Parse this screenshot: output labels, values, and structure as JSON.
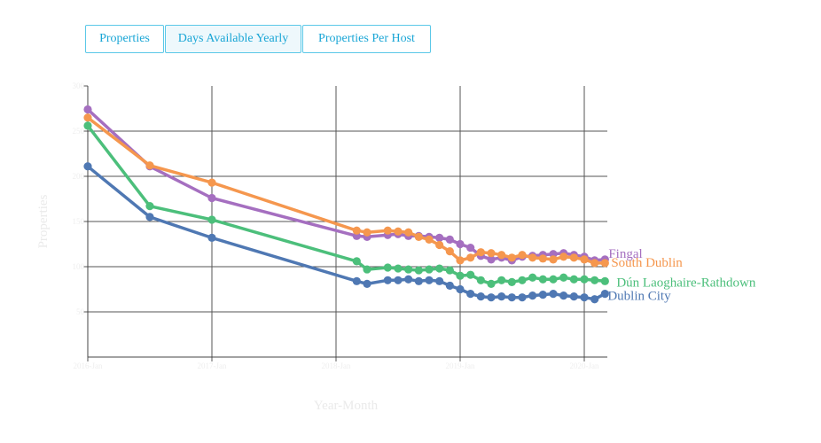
{
  "tabs": [
    {
      "label": "Properties"
    },
    {
      "label": "Days Available Yearly"
    },
    {
      "label": "Properties Per Host"
    }
  ],
  "active_tab": 1,
  "chart_data": {
    "type": "line",
    "title": "",
    "xlabel": "Year-Month",
    "ylabel": "Properties",
    "x_ticks": [
      "2016-Jan",
      "2017-Jan",
      "2018-Jan",
      "2019-Jan",
      "2020-Jan"
    ],
    "y_ticks": [
      "300",
      "250",
      "200",
      "150",
      "100",
      "50"
    ],
    "ylim": [
      0,
      300
    ],
    "xlim": [
      "2016-01",
      "2020-03"
    ],
    "grid": true,
    "series": [
      {
        "name": "Fingal",
        "color": "#a56fc0",
        "x": [
          "2016-01",
          "2016-07",
          "2017-01",
          "2018-03",
          "2018-04",
          "2018-06",
          "2018-07",
          "2018-08",
          "2018-09",
          "2018-10",
          "2018-11",
          "2018-12",
          "2019-01",
          "2019-02",
          "2019-03",
          "2019-04",
          "2019-05",
          "2019-06",
          "2019-07",
          "2019-08",
          "2019-09",
          "2019-10",
          "2019-11",
          "2019-12",
          "2020-01",
          "2020-02",
          "2020-03"
        ],
        "values": [
          274,
          211,
          176,
          134,
          133,
          135,
          136,
          134,
          134,
          133,
          132,
          130,
          125,
          121,
          112,
          108,
          110,
          107,
          111,
          112,
          113,
          114,
          115,
          113,
          111,
          107,
          108
        ]
      },
      {
        "name": "South Dublin",
        "color": "#f5974e",
        "x": [
          "2016-01",
          "2016-07",
          "2017-01",
          "2018-03",
          "2018-04",
          "2018-06",
          "2018-07",
          "2018-08",
          "2018-09",
          "2018-10",
          "2018-11",
          "2018-12",
          "2019-01",
          "2019-02",
          "2019-03",
          "2019-04",
          "2019-05",
          "2019-06",
          "2019-07",
          "2019-08",
          "2019-09",
          "2019-10",
          "2019-11",
          "2019-12",
          "2020-01",
          "2020-02",
          "2020-03"
        ],
        "values": [
          265,
          212,
          193,
          140,
          138,
          140,
          139,
          138,
          133,
          130,
          124,
          117,
          107,
          110,
          116,
          115,
          113,
          110,
          113,
          110,
          109,
          108,
          111,
          110,
          108,
          104,
          104
        ]
      },
      {
        "name": "Dún Laoghaire-Rathdown",
        "color": "#4cbf7b",
        "x": [
          "2016-01",
          "2016-07",
          "2017-01",
          "2018-03",
          "2018-04",
          "2018-06",
          "2018-07",
          "2018-08",
          "2018-09",
          "2018-10",
          "2018-11",
          "2018-12",
          "2019-01",
          "2019-02",
          "2019-03",
          "2019-04",
          "2019-05",
          "2019-06",
          "2019-07",
          "2019-08",
          "2019-09",
          "2019-10",
          "2019-11",
          "2019-12",
          "2020-01",
          "2020-02",
          "2020-03"
        ],
        "values": [
          256,
          167,
          152,
          106,
          97,
          99,
          98,
          97,
          96,
          97,
          98,
          96,
          90,
          91,
          85,
          81,
          85,
          83,
          85,
          88,
          86,
          86,
          88,
          86,
          86,
          85,
          84
        ]
      },
      {
        "name": "Dublin City",
        "color": "#4f78b3",
        "x": [
          "2016-01",
          "2016-07",
          "2017-01",
          "2018-03",
          "2018-04",
          "2018-06",
          "2018-07",
          "2018-08",
          "2018-09",
          "2018-10",
          "2018-11",
          "2018-12",
          "2019-01",
          "2019-02",
          "2019-03",
          "2019-04",
          "2019-05",
          "2019-06",
          "2019-07",
          "2019-08",
          "2019-09",
          "2019-10",
          "2019-11",
          "2019-12",
          "2020-01",
          "2020-02",
          "2020-03"
        ],
        "values": [
          211,
          155,
          132,
          84,
          81,
          85,
          85,
          86,
          84,
          85,
          84,
          79,
          75,
          70,
          67,
          66,
          67,
          66,
          66,
          68,
          69,
          70,
          68,
          67,
          66,
          64,
          70
        ]
      }
    ]
  }
}
